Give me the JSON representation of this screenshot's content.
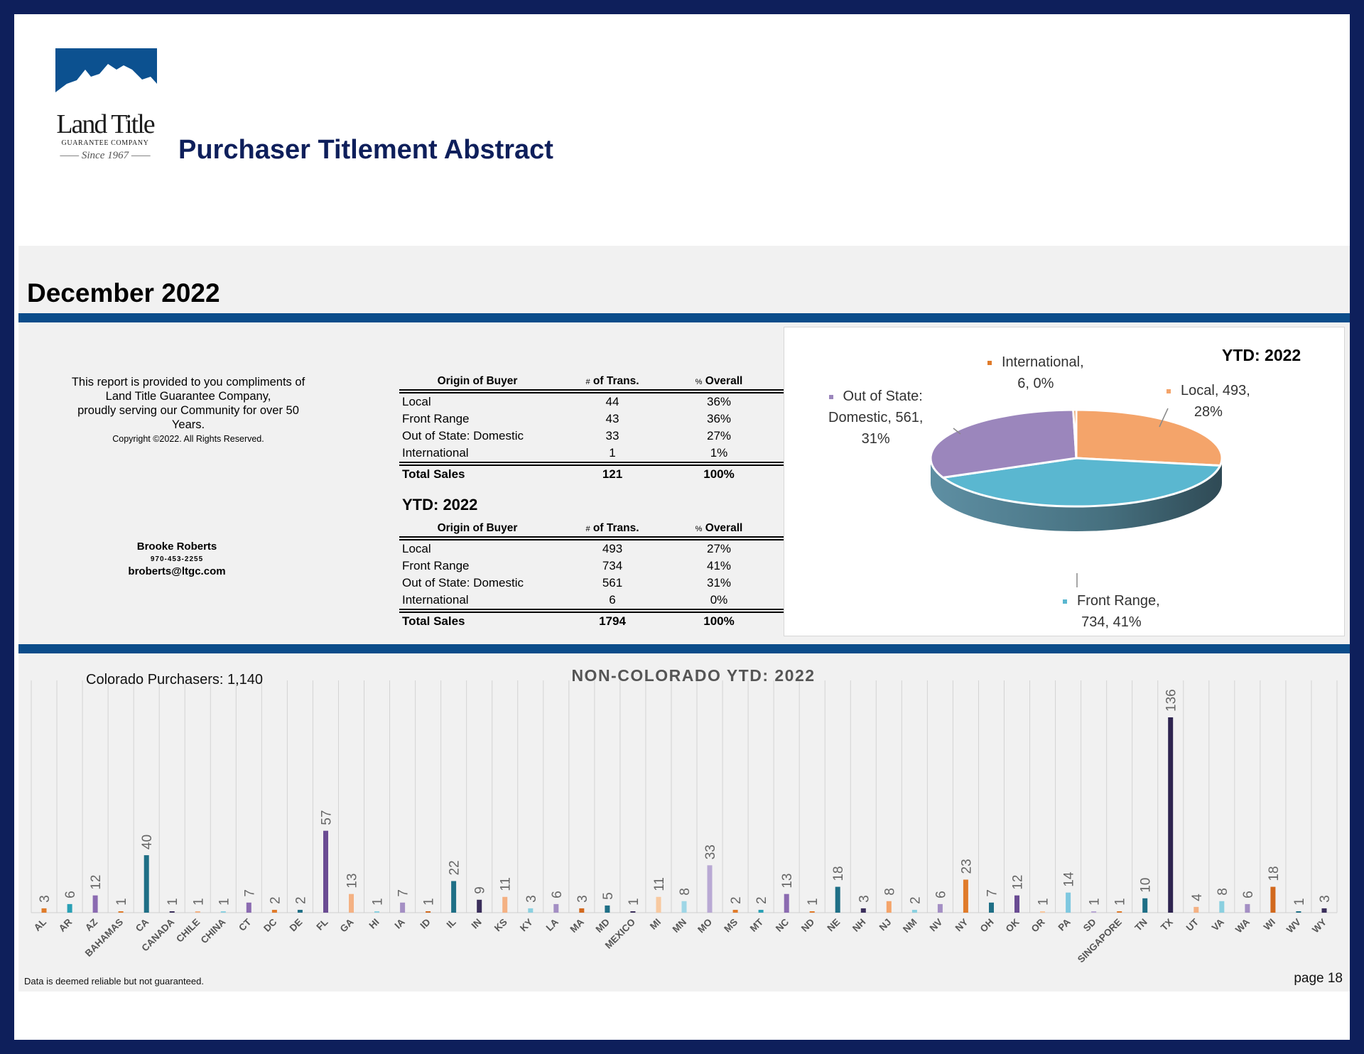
{
  "logo": {
    "name": "Land Title",
    "sub": "GUARANTEE COMPANY",
    "since": "Since 1967"
  },
  "header": {
    "title": "Purchaser Titlement Abstract"
  },
  "month": {
    "title": "December 2022"
  },
  "note": {
    "lines": [
      "This report is provided to you compliments of",
      "Land Title Guarantee Company,",
      "proudly serving our Community for over 50",
      "Years."
    ],
    "copyright": "Copyright ©2022.  All Rights Reserved."
  },
  "contact": {
    "name": "Brooke Roberts",
    "phone": "970-453-2255",
    "email": "broberts@ltgc.com"
  },
  "tables": {
    "headers": {
      "origin": "Origin of Buyer",
      "trans_prefix": "#",
      "trans": " of Trans.",
      "overall_prefix": "%",
      "overall": " Overall"
    },
    "month": {
      "rows": [
        {
          "origin": "Local",
          "trans": "44",
          "overall": "36%"
        },
        {
          "origin": "Front Range",
          "trans": "43",
          "overall": "36%"
        },
        {
          "origin": "Out of State: Domestic",
          "trans": "33",
          "overall": "27%"
        },
        {
          "origin": "International",
          "trans": "1",
          "overall": "1%"
        }
      ],
      "total": {
        "origin": "Total Sales",
        "trans": "121",
        "overall": "100%"
      }
    },
    "ytd_title": "YTD: 2022",
    "ytd": {
      "rows": [
        {
          "origin": "Local",
          "trans": "493",
          "overall": "27%"
        },
        {
          "origin": "Front Range",
          "trans": "734",
          "overall": "41%"
        },
        {
          "origin": "Out of State: Domestic",
          "trans": "561",
          "overall": "31%"
        },
        {
          "origin": "International",
          "trans": "6",
          "overall": "0%"
        }
      ],
      "total": {
        "origin": "Total Sales",
        "trans": "1794",
        "overall": "100%"
      }
    }
  },
  "footer": {
    "disclaimer": "Data is deemed reliable but not guaranteed.",
    "page": "page 18"
  },
  "chart_data": [
    {
      "type": "pie",
      "title": "YTD: 2022",
      "slices": [
        {
          "name": "Local",
          "value": 493,
          "percent": "28%",
          "color": "#f4a46a",
          "label_lines": [
            "Local, 493,",
            "28%"
          ]
        },
        {
          "name": "Front Range",
          "value": 734,
          "percent": "41%",
          "color": "#5ab7d0",
          "label_lines": [
            "Front Range,",
            "734, 41%"
          ]
        },
        {
          "name": "Out of State: Domestic",
          "value": 561,
          "percent": "31%",
          "color": "#9b86bc",
          "label_lines": [
            "Out of State:",
            "Domestic, 561,",
            "31%"
          ]
        },
        {
          "name": "International",
          "value": 6,
          "percent": "0%",
          "color": "#e07b2a",
          "label_lines": [
            "International,",
            "6, 0%"
          ]
        }
      ]
    },
    {
      "type": "bar",
      "title": "NON-COLORADO YTD: 2022",
      "annotation": "Colorado Purchasers: 1,140",
      "categories": [
        "AL",
        "AR",
        "AZ",
        "BAHAMAS",
        "CA",
        "CANADA",
        "CHILE",
        "CHINA",
        "CT",
        "DC",
        "DE",
        "FL",
        "GA",
        "HI",
        "IA",
        "ID",
        "IL",
        "IN",
        "KS",
        "KY",
        "LA",
        "MA",
        "MD",
        "MEXICO",
        "MI",
        "MN",
        "MO",
        "MS",
        "MT",
        "NC",
        "ND",
        "NE",
        "NH",
        "NJ",
        "NM",
        "NV",
        "NY",
        "OH",
        "OK",
        "OR",
        "PA",
        "SD",
        "SINGAPORE",
        "TN",
        "TX",
        "UT",
        "VA",
        "WA",
        "WI",
        "WV",
        "WY"
      ],
      "values": [
        3,
        6,
        12,
        1,
        40,
        1,
        1,
        1,
        7,
        2,
        2,
        57,
        13,
        1,
        7,
        1,
        22,
        9,
        11,
        3,
        6,
        3,
        5,
        1,
        11,
        8,
        33,
        2,
        2,
        13,
        1,
        18,
        3,
        8,
        2,
        6,
        23,
        7,
        12,
        1,
        14,
        1,
        1,
        10,
        136,
        4,
        8,
        6,
        18,
        1,
        3
      ],
      "colors": [
        "#e07b2a",
        "#2aa0b5",
        "#8b6bb1",
        "#e07b2a",
        "#1f6f86",
        "#3b2f5b",
        "#f4b183",
        "#8bd0e0",
        "#8b6bb1",
        "#e07b2a",
        "#1f6f86",
        "#6a4c93",
        "#f4b183",
        "#8bd0e0",
        "#a48fc4",
        "#d2691e",
        "#1f6f86",
        "#3b2f5b",
        "#f4b183",
        "#8bd0e0",
        "#a48fc4",
        "#d2691e",
        "#1f6f86",
        "#3b2f5b",
        "#f8c9a0",
        "#9fd6e6",
        "#b9a9d4",
        "#e07b2a",
        "#2aa0b5",
        "#8b6bb1",
        "#e07b2a",
        "#1f6f86",
        "#3b2f5b",
        "#f4a46a",
        "#8bd0e0",
        "#a48fc4",
        "#e07b2a",
        "#1f6f86",
        "#6a4c93",
        "#f8c9a0",
        "#7fc8e0",
        "#b9a9d4",
        "#e07b2a",
        "#1f6f86",
        "#2e2450",
        "#f4b183",
        "#8bd0e0",
        "#a48fc4",
        "#d2691e",
        "#1f6f86",
        "#3b2f5b"
      ]
    }
  ]
}
